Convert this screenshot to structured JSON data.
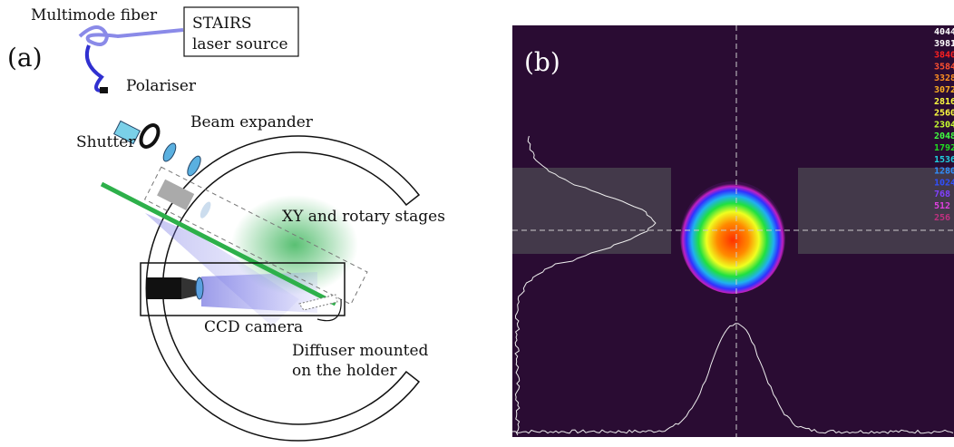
{
  "panel_a": {
    "label": "(a)",
    "fiber": "Multimode fiber",
    "source": [
      "STAIRS",
      "laser source"
    ],
    "polariser": "Polariser",
    "shutter": "Shutter",
    "beam_expander": "Beam expander",
    "stages": "XY and rotary stages",
    "camera": "CCD camera",
    "diffuser": [
      "Diffuser mounted",
      "on the holder"
    ]
  },
  "panel_b": {
    "label": "(b)",
    "scale_labels": [
      "4044",
      "3981",
      "3840",
      "3584",
      "3328",
      "3072",
      "2816",
      "2560",
      "2304",
      "2048",
      "1792",
      "1536",
      "1280",
      "1024",
      "768",
      "512",
      "256"
    ],
    "scale_colors": [
      "#ffffff",
      "#ffffff",
      "#ff2020",
      "#ff5030",
      "#ff9020",
      "#ffb020",
      "#ffff40",
      "#ffff40",
      "#c8ff30",
      "#40ff40",
      "#20e020",
      "#20d0e0",
      "#3090ff",
      "#3050ff",
      "#8040ff",
      "#e040e0",
      "#c03080"
    ]
  }
}
